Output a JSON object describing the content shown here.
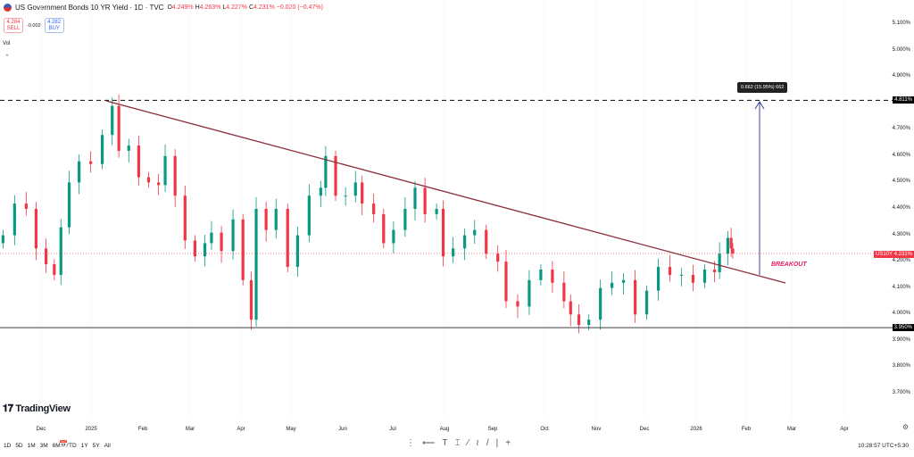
{
  "header": {
    "title": "US Government Bonds 10 YR Yield · 1D · TVC",
    "open_label": "O",
    "open": "4.249%",
    "high_label": "H",
    "high": "4.263%",
    "low_label": "L",
    "low": "4.227%",
    "close_label": "C",
    "close": "4.231%",
    "change": "−0.020 (−0.47%)"
  },
  "trade": {
    "sell_price": "4.284",
    "sell_label": "SELL",
    "spread": "-0.002",
    "buy_price": "4.282",
    "buy_label": "BUY"
  },
  "vol_label": "Vol",
  "price_scale": [
    "5.100%",
    "5.000%",
    "4.900%",
    "4.700%",
    "4.600%",
    "4.500%",
    "4.400%",
    "4.300%",
    "4.200%",
    "4.100%",
    "4.000%",
    "3.900%",
    "3.800%",
    "3.700%"
  ],
  "resistance_tag": "4.811%",
  "support_tag": "3.950%",
  "symbol_tag": "US10Y",
  "price_tag": "4.231%",
  "measure_label": "0.662 (15.95%) 662",
  "breakout_label": "BREAKOUT",
  "brand": "TradingView",
  "time_axis": [
    "Dec",
    "2025",
    "Feb",
    "Mar",
    "Apr",
    "May",
    "Jun",
    "Jul",
    "Aug",
    "Sep",
    "Oct",
    "Nov",
    "Dec",
    "2026",
    "Feb",
    "Mar",
    "Apr"
  ],
  "ranges": [
    "1D",
    "5D",
    "1M",
    "3M",
    "6M",
    "YTD",
    "1Y",
    "5Y",
    "All"
  ],
  "clock": "10:28:57 UTC+5:30",
  "colors": {
    "up": "#089981",
    "down": "#f23645",
    "trendline": "#8b2e3a",
    "arrow": "#3f3f9a",
    "breakout": "#e91e63"
  },
  "chart_data": {
    "type": "candlestick",
    "ylim": [
      3.65,
      5.12
    ],
    "unit": "%",
    "resistance": 4.811,
    "support": 3.95,
    "last": 4.231,
    "closes": [
      [
        "2024-11-08",
        4.3
      ],
      [
        "2024-11-15",
        4.42
      ],
      [
        "2024-11-22",
        4.4
      ],
      [
        "2024-11-28",
        4.25
      ],
      [
        "2024-12-04",
        4.19
      ],
      [
        "2024-12-09",
        4.15
      ],
      [
        "2024-12-13",
        4.33
      ],
      [
        "2024-12-18",
        4.5
      ],
      [
        "2024-12-24",
        4.58
      ],
      [
        "2024-12-31",
        4.57
      ],
      [
        "2025-01-07",
        4.68
      ],
      [
        "2025-01-13",
        4.79
      ],
      [
        "2025-01-17",
        4.62
      ],
      [
        "2025-01-23",
        4.64
      ],
      [
        "2025-01-29",
        4.52
      ],
      [
        "2025-02-04",
        4.5
      ],
      [
        "2025-02-10",
        4.49
      ],
      [
        "2025-02-14",
        4.6
      ],
      [
        "2025-02-20",
        4.45
      ],
      [
        "2025-02-26",
        4.28
      ],
      [
        "2025-03-04",
        4.22
      ],
      [
        "2025-03-10",
        4.27
      ],
      [
        "2025-03-14",
        4.31
      ],
      [
        "2025-03-20",
        4.24
      ],
      [
        "2025-03-27",
        4.36
      ],
      [
        "2025-04-02",
        4.13
      ],
      [
        "2025-04-07",
        3.98
      ],
      [
        "2025-04-10",
        4.4
      ],
      [
        "2025-04-16",
        4.32
      ],
      [
        "2025-04-22",
        4.4
      ],
      [
        "2025-04-29",
        4.18
      ],
      [
        "2025-05-05",
        4.3
      ],
      [
        "2025-05-12",
        4.45
      ],
      [
        "2025-05-19",
        4.48
      ],
      [
        "2025-05-22",
        4.6
      ],
      [
        "2025-05-28",
        4.45
      ],
      [
        "2025-06-03",
        4.45
      ],
      [
        "2025-06-09",
        4.5
      ],
      [
        "2025-06-13",
        4.42
      ],
      [
        "2025-06-20",
        4.38
      ],
      [
        "2025-06-26",
        4.27
      ],
      [
        "2025-07-02",
        4.32
      ],
      [
        "2025-07-09",
        4.4
      ],
      [
        "2025-07-15",
        4.48
      ],
      [
        "2025-07-21",
        4.38
      ],
      [
        "2025-07-28",
        4.4
      ],
      [
        "2025-08-01",
        4.22
      ],
      [
        "2025-08-07",
        4.25
      ],
      [
        "2025-08-14",
        4.3
      ],
      [
        "2025-08-20",
        4.32
      ],
      [
        "2025-08-27",
        4.23
      ],
      [
        "2025-09-03",
        4.2
      ],
      [
        "2025-09-08",
        4.05
      ],
      [
        "2025-09-15",
        4.03
      ],
      [
        "2025-09-22",
        4.13
      ],
      [
        "2025-09-29",
        4.17
      ],
      [
        "2025-10-06",
        4.12
      ],
      [
        "2025-10-13",
        4.05
      ],
      [
        "2025-10-17",
        4.0
      ],
      [
        "2025-10-22",
        3.96
      ],
      [
        "2025-10-28",
        3.98
      ],
      [
        "2025-11-04",
        4.1
      ],
      [
        "2025-11-11",
        4.12
      ],
      [
        "2025-11-18",
        4.13
      ],
      [
        "2025-11-25",
        4.0
      ],
      [
        "2025-12-02",
        4.09
      ],
      [
        "2025-12-09",
        4.18
      ],
      [
        "2025-12-16",
        4.15
      ],
      [
        "2025-12-23",
        4.15
      ],
      [
        "2025-12-30",
        4.12
      ],
      [
        "2026-01-06",
        4.17
      ],
      [
        "2026-01-12",
        4.16
      ],
      [
        "2026-01-15",
        4.23
      ],
      [
        "2026-01-20",
        4.29
      ],
      [
        "2026-01-22",
        4.25
      ],
      [
        "2026-01-23",
        4.231
      ]
    ]
  }
}
